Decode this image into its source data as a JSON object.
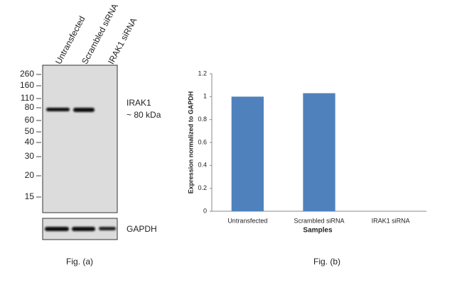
{
  "blot": {
    "lanes": [
      "Untransfected",
      "Scrambled siRNA",
      "IRAK1 siRNA"
    ],
    "markers": [
      "260",
      "160",
      "110",
      "80",
      "60",
      "50",
      "40",
      "30",
      "20",
      "15"
    ],
    "target_label": "IRAK1",
    "target_size": "~ 80 kDa",
    "control_label": "GAPDH",
    "caption": "Fig. (a)"
  },
  "chart_data": {
    "type": "bar",
    "caption": "Fig. (b)",
    "x_label": "Samples",
    "y_label": "Expression normalized to GAPDH",
    "categories": [
      "Untransfected",
      "Scrambled siRNA",
      "IRAK1 siRNA"
    ],
    "values": [
      1,
      1.03,
      0
    ],
    "color": "#4f81bd",
    "ylim": [
      0,
      1.2
    ],
    "yticks": [
      0,
      0.2,
      0.4,
      0.6,
      0.8,
      1,
      1.2
    ],
    "grid": false
  }
}
